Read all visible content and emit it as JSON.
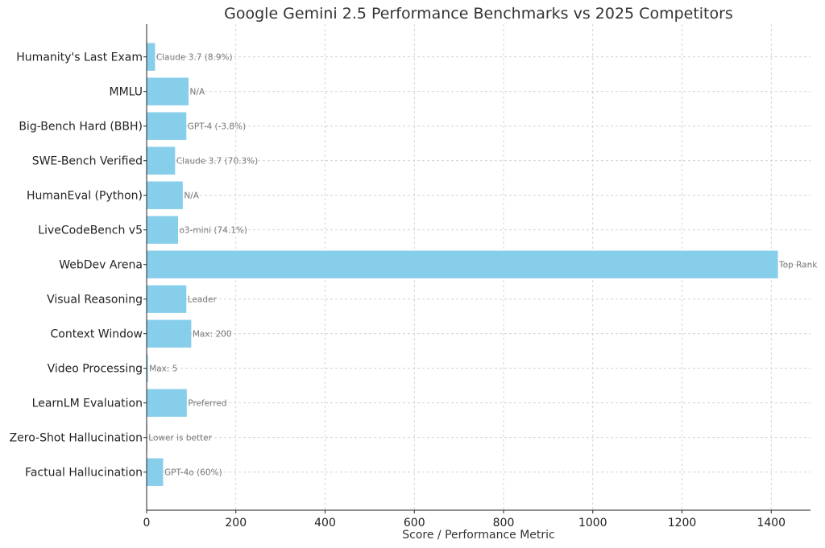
{
  "chart_data": {
    "type": "bar",
    "orientation": "horizontal",
    "title": "Google Gemini 2.5 Performance Benchmarks vs 2025 Competitors",
    "xlabel": "Score / Performance Metric",
    "ylabel": "",
    "xlim": [
      0,
      1488
    ],
    "xticks": [
      0,
      200,
      400,
      600,
      800,
      1000,
      1200,
      1400
    ],
    "grid": true,
    "bar_color": "#87CEEB",
    "categories": [
      "Humanity's Last Exam",
      "MMLU",
      "Big-Bench Hard (BBH)",
      "SWE-Bench Verified",
      "HumanEval (Python)",
      "LiveCodeBench v5",
      "WebDev Arena",
      "Visual Reasoning",
      "Context Window",
      "Video Processing",
      "LearnLM Evaluation",
      "Zero-Shot Hallucination",
      "Factual Hallucination"
    ],
    "values": [
      18.8,
      94,
      89,
      63.8,
      81,
      70.4,
      1415,
      89,
      100,
      3,
      90,
      1,
      37
    ],
    "annotations": [
      "Claude 3.7 (8.9%)",
      "N/A",
      "GPT-4 (-3.8%)",
      "Claude 3.7 (70.3%)",
      "N/A",
      "o3-mini (74.1%)",
      "Top Rank",
      "Leader",
      "Max: 200",
      "Max: 5",
      "Preferred",
      "Lower is better",
      "GPT-4o (60%)"
    ]
  }
}
